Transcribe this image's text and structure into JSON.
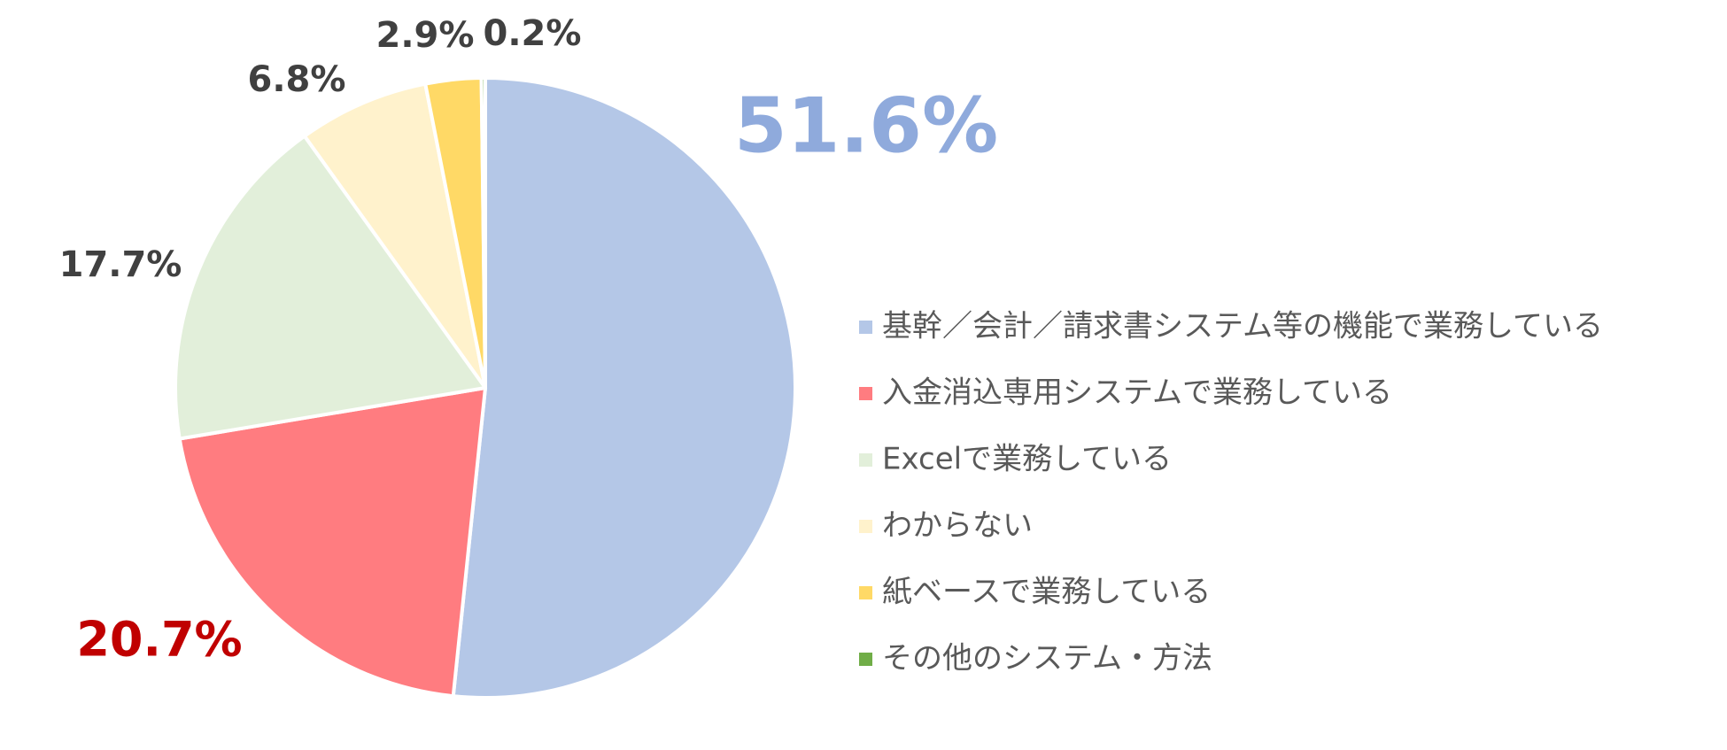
{
  "chart_data": {
    "type": "pie",
    "title": "",
    "legend_position": "right",
    "start_angle_deg": 0,
    "direction": "clockwise",
    "slices": [
      {
        "label": "基幹／会計／請求書システム等の機能で業務している",
        "value": 51.6,
        "display": "51.6%",
        "color": "#b4c7e7",
        "label_color": "#8faadc",
        "label_size": "large"
      },
      {
        "label": "入金消込専用システムで業務している",
        "value": 20.7,
        "display": "20.7%",
        "color": "#ff7c80",
        "label_color": "#c00000",
        "label_size": "medium"
      },
      {
        "label": "Excelで業務している",
        "value": 17.7,
        "display": "17.7%",
        "color": "#e2efda",
        "label_color": "#404040",
        "label_size": "small"
      },
      {
        "label": "わからない",
        "value": 6.8,
        "display": "6.8%",
        "color": "#fff2cc",
        "label_color": "#404040",
        "label_size": "small"
      },
      {
        "label": "紙ベースで業務している",
        "value": 2.9,
        "display": "2.9%",
        "color": "#ffd966",
        "label_color": "#404040",
        "label_size": "small"
      },
      {
        "label": "その他のシステム・方法",
        "value": 0.2,
        "display": "0.2%",
        "color": "#70ad47",
        "label_color": "#404040",
        "label_size": "small"
      }
    ]
  }
}
